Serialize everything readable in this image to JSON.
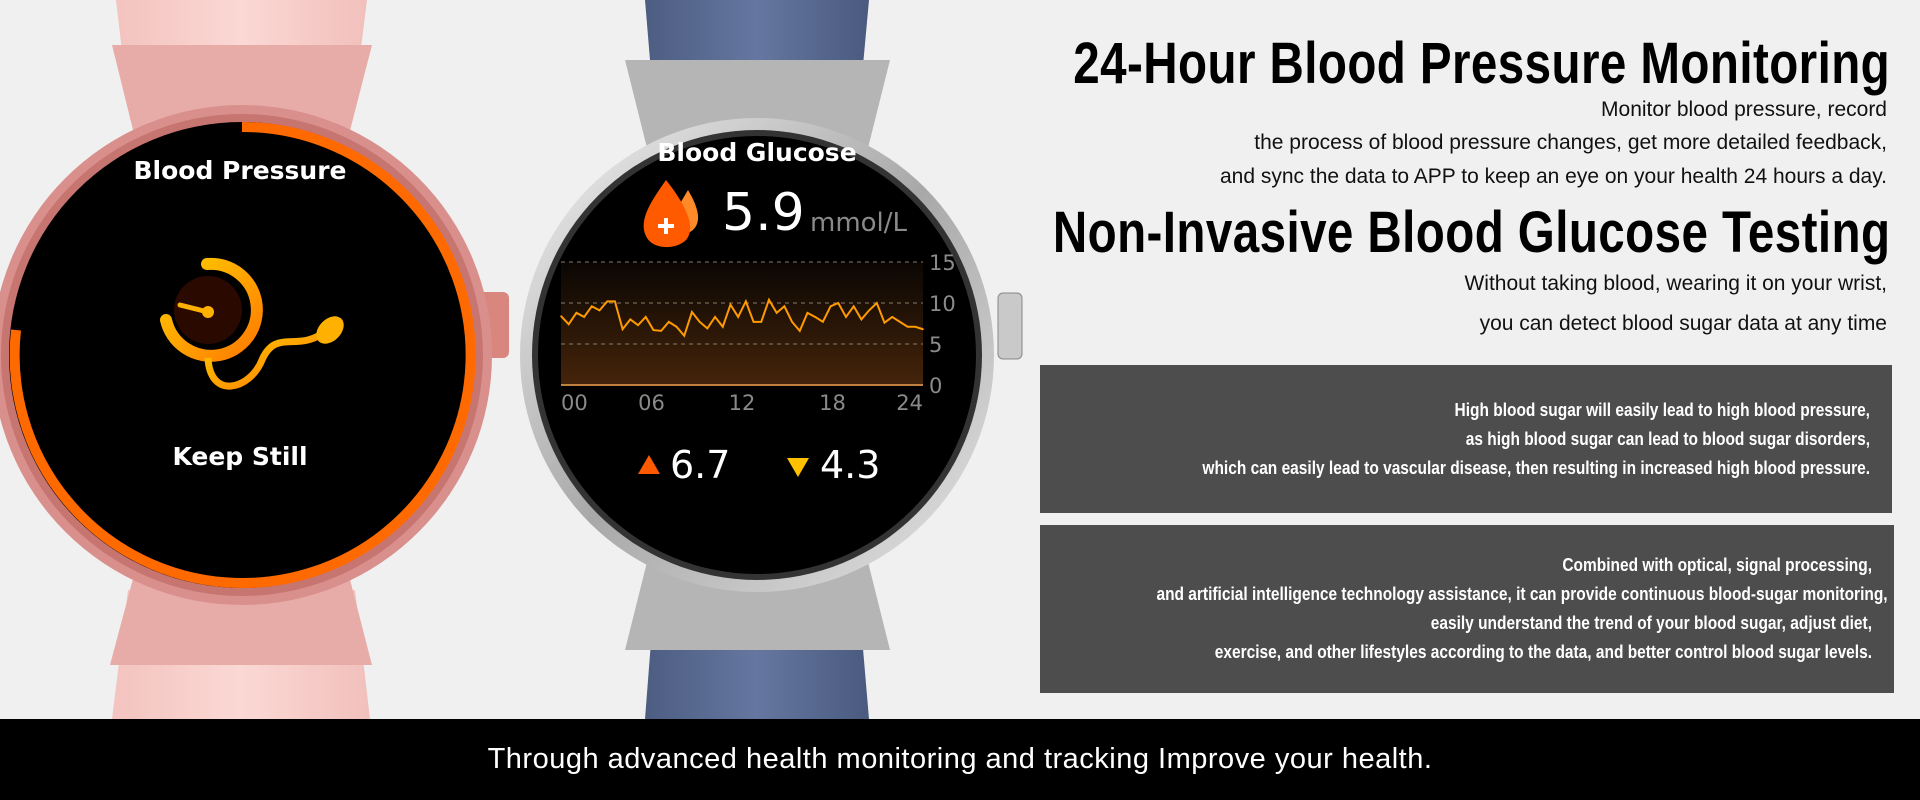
{
  "watch_left": {
    "title": "Blood Pressure",
    "status": "Keep Still",
    "icon": "blood-pressure-gauge-icon",
    "colors": {
      "band": "#f8d0cc",
      "case": "#e4a6a2",
      "ring": "#ff6a00"
    }
  },
  "watch_right": {
    "title": "Blood Glucose",
    "icon": "blood-drop-icon",
    "value": "5.9",
    "unit": "mmol/L",
    "high": "6.7",
    "low": "4.3",
    "colors": {
      "band": "#5a6a8e",
      "case": "#c8c8c8",
      "line": "#ff9a00",
      "high": "#ff5a00",
      "low": "#ffc000"
    }
  },
  "chart_data": {
    "type": "line",
    "x_ticks": [
      "00",
      "06",
      "12",
      "18",
      "24"
    ],
    "y_ticks": [
      "0",
      "5",
      "10",
      "15"
    ],
    "xlim": [
      0,
      24
    ],
    "ylim": [
      0,
      15
    ],
    "grid": true,
    "values": [
      8.4,
      7.4,
      8.8,
      8.3,
      9.6,
      9.1,
      10.2,
      10.2,
      6.8,
      8.0,
      7.3,
      8.3,
      6.7,
      6.6,
      7.7,
      7.1,
      6.0,
      8.9,
      7.7,
      6.9,
      8.3,
      7.1,
      9.8,
      8.3,
      10.2,
      7.7,
      7.7,
      10.4,
      8.8,
      9.6,
      7.7,
      6.6,
      8.8,
      8.3,
      7.7,
      9.6,
      10.0,
      8.3,
      9.6,
      8.0,
      9.1,
      10.0,
      7.6,
      8.3,
      7.7,
      7.1,
      7.1,
      6.8
    ]
  },
  "section1": {
    "title": "24-Hour Blood Pressure Monitoring",
    "lines": [
      "Monitor blood pressure, record",
      "the process of blood pressure changes, get more detailed feedback,",
      "and sync the data to APP to keep an eye on your health 24 hours a day."
    ]
  },
  "section2": {
    "title": "Non-Invasive Blood Glucose Testing",
    "lines": [
      "Without taking blood, wearing it on your wrist,",
      "you can detect blood sugar data at any time"
    ]
  },
  "box1": [
    "High blood sugar will easily lead to high blood pressure,",
    "as high blood sugar can lead to blood sugar disorders,",
    "which can easily lead to vascular disease, then resulting in increased high blood pressure."
  ],
  "box2": [
    "Combined with optical, signal processing,",
    "and artificial intelligence technology assistance, it can provide continuous blood-sugar monitoring,",
    "easily understand the trend of your blood sugar, adjust diet,",
    "exercise, and other lifestyles according to the data, and better control blood sugar levels."
  ],
  "footer": "Through advanced health monitoring and tracking Improve your health."
}
